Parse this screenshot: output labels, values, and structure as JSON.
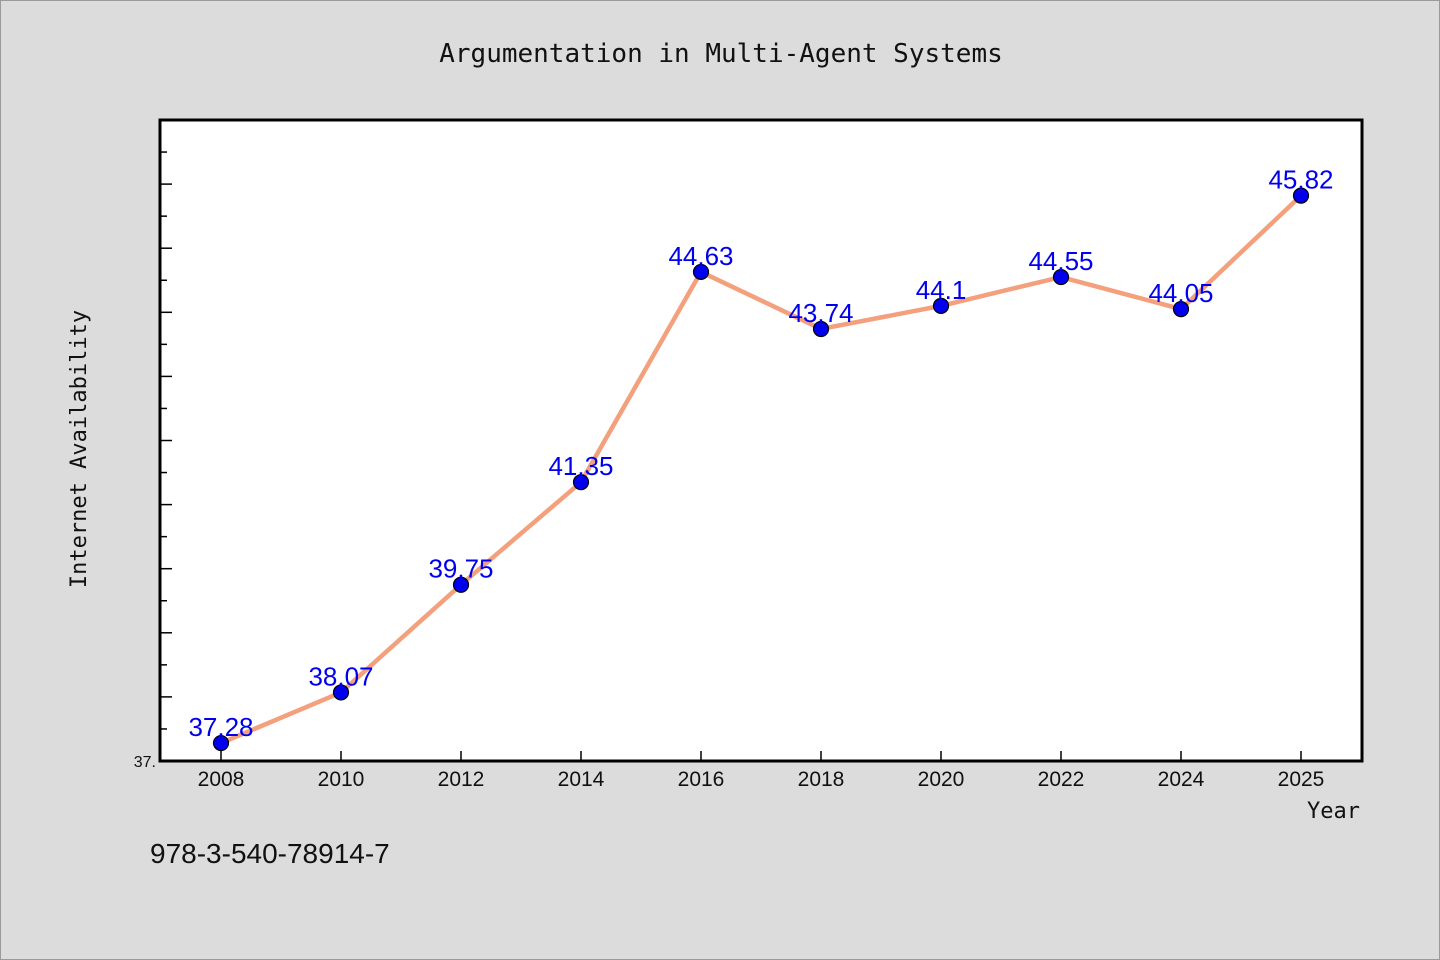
{
  "chart_data": {
    "type": "line",
    "title": "Argumentation in Multi-Agent Systems",
    "xlabel": "Year",
    "ylabel": "Internet Availability",
    "x": [
      "2008",
      "2010",
      "2012",
      "2014",
      "2016",
      "2018",
      "2020",
      "2022",
      "2024",
      "2025"
    ],
    "series": [
      {
        "values": [
          37.28,
          38.07,
          39.75,
          41.35,
          44.63,
          43.74,
          44.1,
          44.55,
          44.05,
          45.82
        ],
        "data_labels": [
          "37.28",
          "38.07",
          "39.75",
          "41.35",
          "44.63",
          "43.74",
          "44.1",
          "44.55",
          "44.05",
          "45.82"
        ],
        "line_color": "#f4a07c",
        "marker_color": "#0000ee"
      }
    ],
    "ylim": [
      37.0,
      47.0
    ],
    "y_tick_labels": [
      "37."
    ],
    "grid": false,
    "legend": "none"
  },
  "footer": {
    "code": "978-3-540-78914-7"
  },
  "colors": {
    "background": "#dcdcdc",
    "plot_background": "#ffffff",
    "label_color": "#0000ee"
  }
}
